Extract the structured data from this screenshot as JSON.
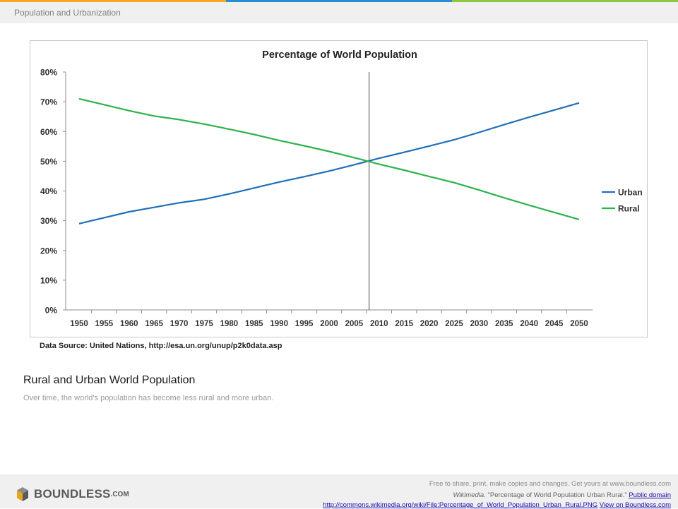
{
  "header": {
    "title": "Population and Urbanization"
  },
  "colors": {
    "bar1": "#f7a823",
    "bar2": "#2a8fd0",
    "bar3": "#8dc63f",
    "urban": "#1f6fb8",
    "rural": "#2db34a"
  },
  "chart_data": {
    "type": "line",
    "title": "Percentage of World Population",
    "x": [
      1950,
      1955,
      1960,
      1965,
      1970,
      1975,
      1980,
      1985,
      1990,
      1995,
      2000,
      2005,
      2010,
      2015,
      2020,
      2025,
      2030,
      2035,
      2040,
      2045,
      2050
    ],
    "series": [
      {
        "name": "Urban",
        "values": [
          29,
          31,
          33,
          34.5,
          36,
          37.2,
          39,
          41,
          43,
          44.8,
          46.7,
          48.8,
          51,
          53,
          55.1,
          57.2,
          59.7,
          62.3,
          64.8,
          67.2,
          69.6
        ]
      },
      {
        "name": "Rural",
        "values": [
          71,
          69,
          67,
          65.2,
          64,
          62.5,
          60.8,
          59,
          57,
          55.2,
          53.3,
          51.2,
          49,
          47,
          44.9,
          42.8,
          40.3,
          37.7,
          35.2,
          32.8,
          30.4
        ]
      }
    ],
    "marker_year": 2008,
    "ylim": [
      0,
      80
    ],
    "yticks": [
      "0%",
      "10%",
      "20%",
      "30%",
      "40%",
      "50%",
      "60%",
      "70%",
      "80%"
    ],
    "legend": "right",
    "grid": false
  },
  "source": "Data Source: United Nations, http://esa.un.org/unup/p2k0data.asp",
  "caption": {
    "title": "Rural and Urban World Population",
    "description": "Over time, the world's population has become less rural and more urban."
  },
  "footer": {
    "logo_text": "BOUNDLESS",
    "logo_suffix": ".COM",
    "line1": "Free to share, print, make copies and changes. Get yours at www.boundless.com",
    "line2_prefix": "Wikimedia.",
    "line2_text": " \"Percentage of World Population Urban Rural.\" ",
    "line2_link": "Public domain",
    "line3_link": "http://commons.wikimedia.org/wiki/File:Percentage_of_World_Population_Urban_Rural.PNG",
    "line3_link2": "View on Boundless.com"
  }
}
